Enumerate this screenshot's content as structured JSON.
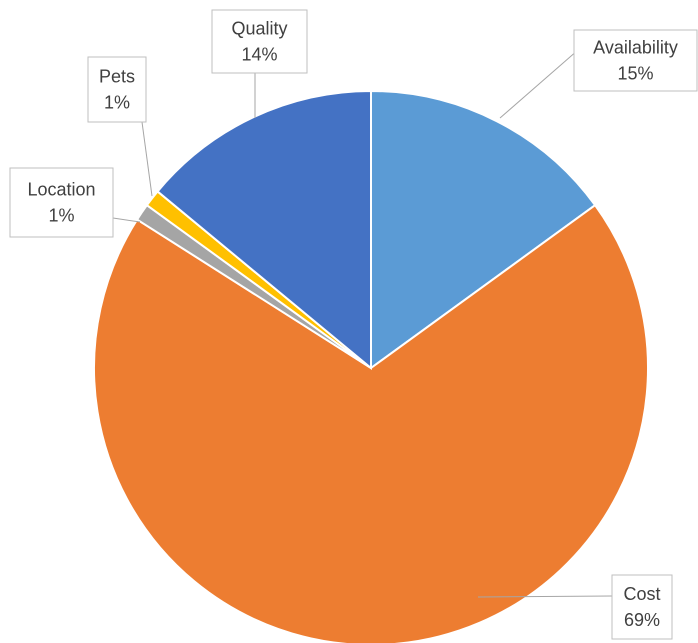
{
  "chart_data": {
    "type": "pie",
    "categories": [
      "Availability",
      "Cost",
      "Location",
      "Pets",
      "Quality"
    ],
    "values": [
      15,
      69,
      1,
      1,
      14
    ],
    "value_labels": [
      "15%",
      "69%",
      "1%",
      "1%",
      "14%"
    ],
    "colors": [
      "#5b9bd5",
      "#ed7d31",
      "#a5a5a5",
      "#ffc000",
      "#4472c4"
    ]
  }
}
